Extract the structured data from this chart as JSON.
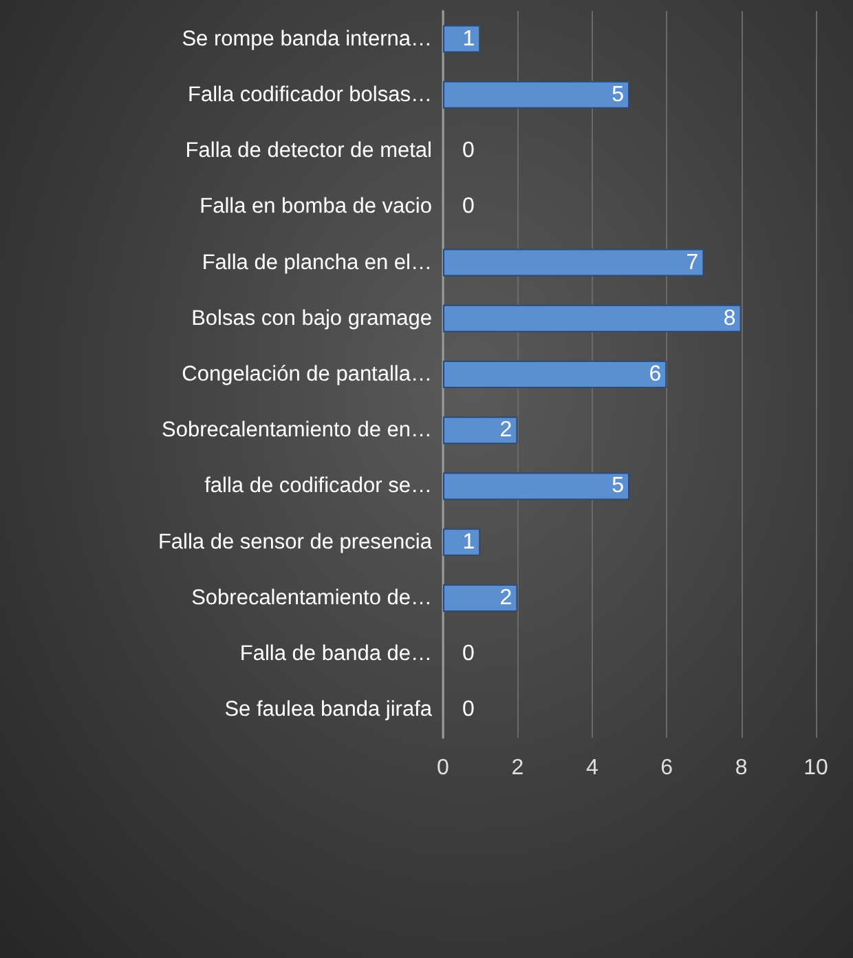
{
  "chart_data": {
    "type": "bar",
    "orientation": "horizontal",
    "categories": [
      "Se rompe banda interna…",
      "Falla codificador bolsas…",
      "Falla de detector de metal",
      "Falla en bomba de vacio",
      "Falla de plancha en el…",
      "Bolsas con bajo gramage",
      "Congelación de pantalla…",
      "Sobrecalentamiento de en…",
      "falla de codificador se…",
      "Falla de sensor de presencia",
      "Sobrecalentamiento de…",
      "Falla de banda de…",
      "Se faulea banda jirafa"
    ],
    "values": [
      1,
      5,
      0,
      0,
      7,
      8,
      6,
      2,
      5,
      1,
      2,
      0,
      0
    ],
    "color": "#5b8fd0",
    "xlim": [
      0,
      10
    ],
    "xticks": [
      0,
      2,
      4,
      6,
      8,
      10
    ],
    "grid": "x",
    "data_labels": true
  }
}
